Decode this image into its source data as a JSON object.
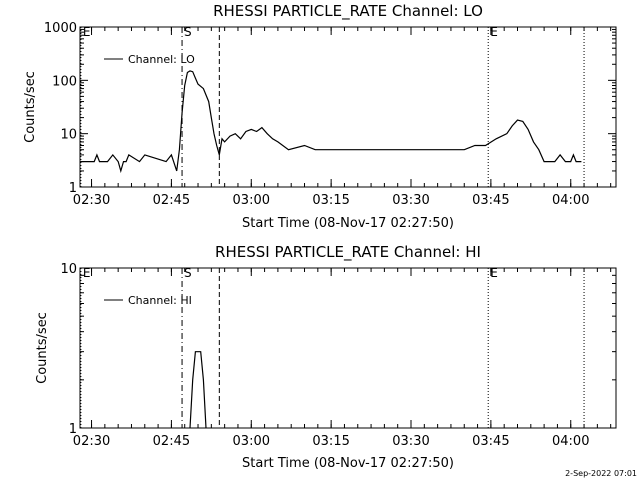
{
  "footer_date": "2-Sep-2022 07:01",
  "chart_data": [
    {
      "type": "line",
      "title": "RHESSI PARTICLE_RATE Channel: LO",
      "xlabel": "Start Time (08-Nov-17 02:27:50)",
      "ylabel": "Counts/sec",
      "yscale": "log",
      "xlim": [
        "02:27:50",
        "04:08:30"
      ],
      "ylim": [
        1,
        1000
      ],
      "x_ticks": [
        "02:30",
        "02:45",
        "03:00",
        "03:15",
        "03:30",
        "03:45",
        "04:00"
      ],
      "y_ticks": [
        "1",
        "10",
        "100",
        "1000"
      ],
      "legend": {
        "label": "Channel: LO",
        "placement": "top-left"
      },
      "markers": [
        {
          "label": "E",
          "time": "02:28:00",
          "style": "dotted"
        },
        {
          "label": "S",
          "time": "02:47:00",
          "style": "dashdot"
        },
        {
          "label": "",
          "time": "02:54:00",
          "style": "dashed"
        },
        {
          "label": "E",
          "time": "03:44:30",
          "style": "dotted"
        },
        {
          "label": "",
          "time": "04:02:30",
          "style": "dotted"
        }
      ],
      "series": [
        {
          "name": "Channel: LO",
          "x": [
            "02:28:00",
            "02:30:30",
            "02:31:00",
            "02:31:30",
            "02:32:00",
            "02:33:00",
            "02:34:00",
            "02:35:00",
            "02:35:30",
            "02:36:00",
            "02:36:30",
            "02:37:00",
            "02:39:00",
            "02:40:00",
            "02:44:00",
            "02:45:00",
            "02:46:00",
            "02:46:30",
            "02:47:00",
            "02:47:30",
            "02:48:00",
            "02:48:30",
            "02:49:00",
            "02:49:30",
            "02:50:00",
            "02:51:00",
            "02:52:00",
            "02:52:30",
            "02:53:00",
            "02:53:30",
            "02:54:00",
            "02:54:30",
            "02:55:00",
            "02:56:00",
            "02:57:00",
            "02:58:00",
            "02:59:00",
            "03:00:00",
            "03:01:00",
            "03:02:00",
            "03:03:00",
            "03:04:00",
            "03:05:00",
            "03:07:00",
            "03:10:00",
            "03:12:00",
            "03:15:00",
            "03:18:00",
            "03:20:00",
            "03:25:00",
            "03:30:00",
            "03:35:00",
            "03:40:00",
            "03:42:00",
            "03:44:00",
            "03:46:00",
            "03:48:00",
            "03:49:00",
            "03:50:00",
            "03:51:00",
            "03:52:00",
            "03:53:00",
            "03:54:00",
            "03:55:00",
            "03:56:00",
            "03:57:00",
            "03:58:00",
            "03:59:00",
            "04:00:00",
            "04:00:30",
            "04:01:00",
            "04:02:00"
          ],
          "values": [
            3,
            3,
            4,
            3,
            3,
            3,
            4,
            3,
            2,
            3,
            3,
            4,
            3,
            4,
            3,
            4,
            2,
            5,
            25,
            80,
            140,
            150,
            145,
            110,
            85,
            70,
            40,
            20,
            10,
            6,
            4,
            8,
            7,
            9,
            10,
            8,
            11,
            12,
            11,
            13,
            10,
            8,
            7,
            5,
            6,
            5,
            5,
            5,
            5,
            5,
            5,
            5,
            5,
            6,
            6,
            8,
            10,
            14,
            18,
            17,
            12,
            7,
            5,
            3,
            3,
            3,
            4,
            3,
            3,
            4,
            3,
            3
          ]
        }
      ]
    },
    {
      "type": "line",
      "title": "RHESSI PARTICLE_RATE Channel: HI",
      "xlabel": "Start Time (08-Nov-17 02:27:50)",
      "ylabel": "Counts/sec",
      "yscale": "log",
      "xlim": [
        "02:27:50",
        "04:08:30"
      ],
      "ylim": [
        1,
        10
      ],
      "x_ticks": [
        "02:30",
        "02:45",
        "03:00",
        "03:15",
        "03:30",
        "03:45",
        "04:00"
      ],
      "y_ticks": [
        "1",
        "10"
      ],
      "legend": {
        "label": "Channel: HI",
        "placement": "top-left"
      },
      "markers": [
        {
          "label": "E",
          "time": "02:28:00",
          "style": "dotted"
        },
        {
          "label": "S",
          "time": "02:47:00",
          "style": "dashdot"
        },
        {
          "label": "",
          "time": "02:54:00",
          "style": "dashed"
        },
        {
          "label": "E",
          "time": "03:44:30",
          "style": "dotted"
        },
        {
          "label": "",
          "time": "04:02:30",
          "style": "dotted"
        }
      ],
      "series": [
        {
          "name": "Channel: HI",
          "x": [
            "02:48:30",
            "02:49:00",
            "02:49:30",
            "02:50:00",
            "02:50:30",
            "02:51:00",
            "02:51:30"
          ],
          "values": [
            1,
            2,
            3,
            3,
            3,
            2,
            1
          ]
        }
      ]
    }
  ]
}
